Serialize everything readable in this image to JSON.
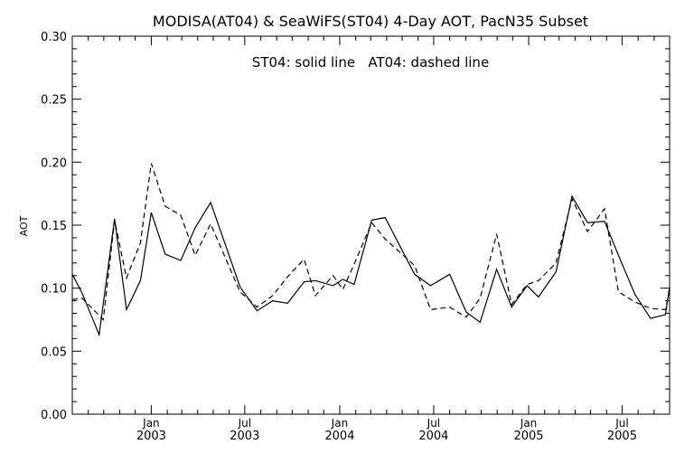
{
  "chart_data": {
    "type": "line",
    "title": "MODISA(AT04) & SeaWiFS(ST04) 4-Day AOT, PacN35 Subset",
    "annotation": "ST04: solid line   AT04: dashed line",
    "xlabel": "",
    "ylabel": "AOT",
    "xlim": [
      "2002-08-01",
      "2005-10-01"
    ],
    "ylim": [
      0,
      0.3
    ],
    "grid": false,
    "y_ticks": [
      "0.00",
      "0.05",
      "0.10",
      "0.15",
      "0.20",
      "0.25",
      "0.30"
    ],
    "x_ticks": [
      {
        "date": "2003-01-01",
        "month": "Jan",
        "year": "2003"
      },
      {
        "date": "2003-07-01",
        "month": "Jul",
        "year": "2003"
      },
      {
        "date": "2004-01-01",
        "month": "Jan",
        "year": "2004"
      },
      {
        "date": "2004-07-01",
        "month": "Jul",
        "year": "2004"
      },
      {
        "date": "2005-01-01",
        "month": "Jan",
        "year": "2005"
      },
      {
        "date": "2005-07-01",
        "month": "Jul",
        "year": "2005"
      }
    ],
    "series": [
      {
        "name": "ST04",
        "style": "solid",
        "color": "#000000",
        "points": [
          [
            "2002-08-01",
            0.111
          ],
          [
            "2002-08-20",
            0.096
          ],
          [
            "2002-09-22",
            0.063
          ],
          [
            "2002-10-22",
            0.155
          ],
          [
            "2002-11-14",
            0.083
          ],
          [
            "2002-12-11",
            0.106
          ],
          [
            "2003-01-01",
            0.16
          ],
          [
            "2003-01-28",
            0.127
          ],
          [
            "2003-02-27",
            0.122
          ],
          [
            "2003-03-27",
            0.148
          ],
          [
            "2003-04-26",
            0.168
          ],
          [
            "2003-06-22",
            0.101
          ],
          [
            "2003-07-25",
            0.082
          ],
          [
            "2003-08-24",
            0.09
          ],
          [
            "2003-09-22",
            0.088
          ],
          [
            "2003-10-24",
            0.105
          ],
          [
            "2003-11-15",
            0.106
          ],
          [
            "2003-12-19",
            0.102
          ],
          [
            "2004-01-07",
            0.107
          ],
          [
            "2004-01-29",
            0.103
          ],
          [
            "2004-03-03",
            0.154
          ],
          [
            "2004-03-29",
            0.156
          ],
          [
            "2004-05-25",
            0.111
          ],
          [
            "2004-06-25",
            0.102
          ],
          [
            "2004-08-01",
            0.111
          ],
          [
            "2004-09-02",
            0.081
          ],
          [
            "2004-09-29",
            0.073
          ],
          [
            "2004-10-31",
            0.115
          ],
          [
            "2004-11-29",
            0.085
          ],
          [
            "2004-12-29",
            0.102
          ],
          [
            "2005-01-20",
            0.093
          ],
          [
            "2005-02-23",
            0.113
          ],
          [
            "2005-03-26",
            0.173
          ],
          [
            "2005-04-25",
            0.152
          ],
          [
            "2005-05-28",
            0.153
          ],
          [
            "2005-06-24",
            0.126
          ],
          [
            "2005-07-26",
            0.095
          ],
          [
            "2005-08-25",
            0.076
          ],
          [
            "2005-09-23",
            0.079
          ],
          [
            "2005-10-01",
            0.101
          ]
        ]
      },
      {
        "name": "AT04",
        "style": "dashed",
        "color": "#000000",
        "points": [
          [
            "2002-08-01",
            0.091
          ],
          [
            "2002-08-20",
            0.092
          ],
          [
            "2002-09-30",
            0.075
          ],
          [
            "2002-10-22",
            0.154
          ],
          [
            "2002-11-14",
            0.108
          ],
          [
            "2002-12-11",
            0.136
          ],
          [
            "2003-01-01",
            0.199
          ],
          [
            "2003-01-28",
            0.165
          ],
          [
            "2003-02-27",
            0.158
          ],
          [
            "2003-03-27",
            0.126
          ],
          [
            "2003-04-26",
            0.151
          ],
          [
            "2003-06-22",
            0.097
          ],
          [
            "2003-07-25",
            0.085
          ],
          [
            "2003-08-24",
            0.094
          ],
          [
            "2003-09-22",
            0.109
          ],
          [
            "2003-10-24",
            0.123
          ],
          [
            "2003-11-15",
            0.094
          ],
          [
            "2003-12-19",
            0.11
          ],
          [
            "2004-01-07",
            0.099
          ],
          [
            "2004-01-29",
            0.119
          ],
          [
            "2004-03-03",
            0.152
          ],
          [
            "2004-03-29",
            0.139
          ],
          [
            "2004-05-25",
            0.118
          ],
          [
            "2004-06-25",
            0.083
          ],
          [
            "2004-08-01",
            0.085
          ],
          [
            "2004-09-02",
            0.077
          ],
          [
            "2004-09-29",
            0.092
          ],
          [
            "2004-10-31",
            0.143
          ],
          [
            "2004-11-29",
            0.087
          ],
          [
            "2004-12-29",
            0.103
          ],
          [
            "2005-01-20",
            0.106
          ],
          [
            "2005-02-23",
            0.12
          ],
          [
            "2005-03-26",
            0.171
          ],
          [
            "2005-04-25",
            0.145
          ],
          [
            "2005-05-28",
            0.163
          ],
          [
            "2005-06-24",
            0.097
          ],
          [
            "2005-07-26",
            0.089
          ],
          [
            "2005-08-25",
            0.084
          ],
          [
            "2005-09-23",
            0.083
          ],
          [
            "2005-10-01",
            0.098
          ]
        ]
      }
    ]
  }
}
